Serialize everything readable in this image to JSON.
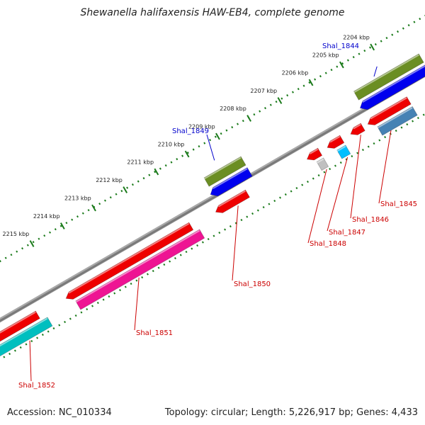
{
  "title": "Shewanella halifaxensis HAW-EB4, complete genome",
  "footer": {
    "accession": "Accession: NC_010334",
    "summary": "Topology: circular; Length: 5,226,917 bp; Genes: 4,433"
  },
  "colors": {
    "backbone": "#7a7a7a",
    "ticks": "#1a7a1a",
    "forward_label": "#0000cc",
    "reverse_label": "#cc0000"
  },
  "ticks": [
    {
      "label": "2204 kbp"
    },
    {
      "label": "2205 kbp"
    },
    {
      "label": "2206 kbp"
    },
    {
      "label": "2207 kbp"
    },
    {
      "label": "2208 kbp"
    },
    {
      "label": "2209 kbp"
    },
    {
      "label": "2210 kbp"
    },
    {
      "label": "2211 kbp"
    },
    {
      "label": "2212 kbp"
    },
    {
      "label": "2213 kbp"
    },
    {
      "label": "2214 kbp"
    },
    {
      "label": "2215 kbp"
    }
  ],
  "genes": [
    {
      "label": "Shal_1844",
      "strand": "forward",
      "colors": [
        "#6b8e23",
        "#0000ee"
      ]
    },
    {
      "label": "Shal_1845",
      "strand": "reverse",
      "colors": [
        "#ee0000",
        "#4682b4"
      ]
    },
    {
      "label": "Shal_1846",
      "strand": "reverse",
      "colors": [
        "#ee0000"
      ]
    },
    {
      "label": "Shal_1847",
      "strand": "reverse",
      "colors": [
        "#ee0000",
        "#00bfff"
      ]
    },
    {
      "label": "Shal_1848",
      "strand": "reverse",
      "colors": [
        "#ee0000",
        "#c0c0c0"
      ]
    },
    {
      "label": "Shal_1849",
      "strand": "forward",
      "colors": [
        "#6b8e23",
        "#0000ee"
      ]
    },
    {
      "label": "Shal_1850",
      "strand": "reverse",
      "colors": [
        "#ee0000"
      ]
    },
    {
      "label": "Shal_1851",
      "strand": "reverse",
      "colors": [
        "#ee0000",
        "#ee1493"
      ]
    },
    {
      "label": "Shal_1852",
      "strand": "reverse",
      "colors": [
        "#ee0000",
        "#00bfbf"
      ]
    }
  ]
}
